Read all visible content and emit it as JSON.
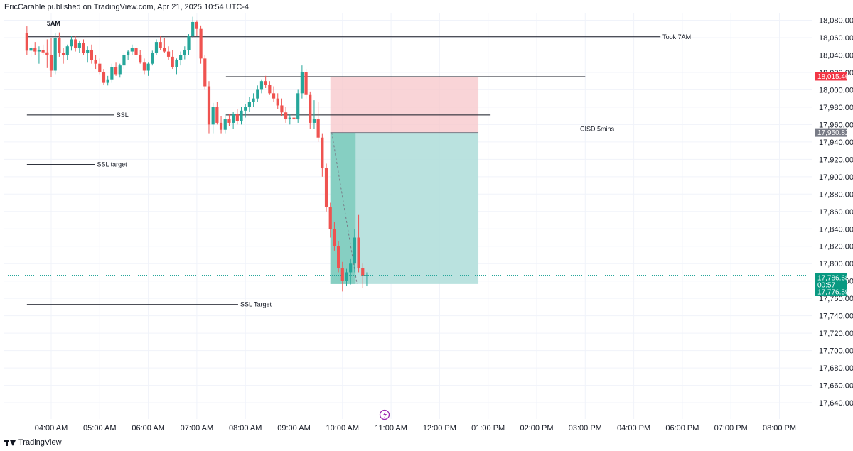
{
  "header": {
    "published_by": "EricCarable published on TradingView.com, Apr 21, 2025 10:54 UTC-4"
  },
  "footer": {
    "brand": "TradingView"
  },
  "colors": {
    "up": "#26a69a",
    "down": "#ef5350",
    "stop_zone": "#f7c5ca",
    "target_zone": "#b2dfdb",
    "target_zone_dark": "#7ccbbd",
    "price_tag_red": "#f23645",
    "price_tag_gray": "#787b86",
    "price_tag_green": "#089981"
  },
  "chart_data": {
    "type": "candlestick",
    "ylim": [
      17630,
      18090
    ],
    "y_ticks": [
      "18,080.00",
      "18,060.00",
      "18,040.00",
      "18,020.00",
      "18,000.00",
      "17,980.00",
      "17,960.00",
      "17,940.00",
      "17,920.00",
      "17,900.00",
      "17,880.00",
      "17,860.00",
      "17,840.00",
      "17,820.00",
      "17,800.00",
      "17,780.00",
      "17,760.00",
      "17,740.00",
      "17,720.00",
      "17,700.00",
      "17,680.00",
      "17,660.00",
      "17,640.00"
    ],
    "y_tick_values": [
      18080,
      18060,
      18040,
      18020,
      18000,
      17980,
      17960,
      17940,
      17920,
      17900,
      17880,
      17860,
      17840,
      17820,
      17800,
      17780,
      17760,
      17740,
      17720,
      17700,
      17680,
      17660,
      17640
    ],
    "x_ticks": [
      "04:00 AM",
      "05:00 AM",
      "06:00 AM",
      "07:00 AM",
      "08:00 AM",
      "09:00 AM",
      "10:00 AM",
      "11:00 AM",
      "12:00 PM",
      "01:00 PM",
      "02:00 PM",
      "03:00 PM",
      "04:00 PM",
      "06:00 PM",
      "07:00 PM",
      "08:00 PM"
    ],
    "x_tick_hours": [
      4,
      5,
      6,
      7,
      8,
      9,
      10,
      11,
      12,
      13,
      14,
      15,
      16,
      17,
      18,
      19
    ],
    "x_start_hour": 3.5,
    "x_end_hour": 19.8,
    "candles": [
      {
        "t": "03:30",
        "o": 18065,
        "h": 18073,
        "l": 18040,
        "c": 18045
      },
      {
        "t": "03:35",
        "o": 18045,
        "h": 18052,
        "l": 18038,
        "c": 18048
      },
      {
        "t": "03:40",
        "o": 18048,
        "h": 18055,
        "l": 18040,
        "c": 18044
      },
      {
        "t": "03:45",
        "o": 18044,
        "h": 18050,
        "l": 18030,
        "c": 18046
      },
      {
        "t": "03:50",
        "o": 18046,
        "h": 18052,
        "l": 18040,
        "c": 18043
      },
      {
        "t": "03:55",
        "o": 18043,
        "h": 18058,
        "l": 18025,
        "c": 18040
      },
      {
        "t": "04:00",
        "o": 18040,
        "h": 18060,
        "l": 18015,
        "c": 18022
      },
      {
        "t": "04:05",
        "o": 18022,
        "h": 18065,
        "l": 18018,
        "c": 18060
      },
      {
        "t": "04:10",
        "o": 18060,
        "h": 18066,
        "l": 18038,
        "c": 18042
      },
      {
        "t": "04:15",
        "o": 18042,
        "h": 18048,
        "l": 18030,
        "c": 18040
      },
      {
        "t": "04:20",
        "o": 18040,
        "h": 18052,
        "l": 18034,
        "c": 18050
      },
      {
        "t": "04:25",
        "o": 18050,
        "h": 18062,
        "l": 18045,
        "c": 18058
      },
      {
        "t": "04:30",
        "o": 18058,
        "h": 18062,
        "l": 18044,
        "c": 18048
      },
      {
        "t": "04:35",
        "o": 18048,
        "h": 18056,
        "l": 18042,
        "c": 18054
      },
      {
        "t": "04:40",
        "o": 18054,
        "h": 18058,
        "l": 18040,
        "c": 18042
      },
      {
        "t": "04:45",
        "o": 18042,
        "h": 18050,
        "l": 18032,
        "c": 18046
      },
      {
        "t": "04:50",
        "o": 18046,
        "h": 18052,
        "l": 18030,
        "c": 18034
      },
      {
        "t": "04:55",
        "o": 18034,
        "h": 18040,
        "l": 18024,
        "c": 18030
      },
      {
        "t": "05:00",
        "o": 18030,
        "h": 18036,
        "l": 18018,
        "c": 18020
      },
      {
        "t": "05:05",
        "o": 18020,
        "h": 18024,
        "l": 18006,
        "c": 18008
      },
      {
        "t": "05:10",
        "o": 18008,
        "h": 18016,
        "l": 18005,
        "c": 18012
      },
      {
        "t": "05:15",
        "o": 18012,
        "h": 18030,
        "l": 18008,
        "c": 18026
      },
      {
        "t": "05:20",
        "o": 18026,
        "h": 18032,
        "l": 18016,
        "c": 18018
      },
      {
        "t": "05:25",
        "o": 18018,
        "h": 18030,
        "l": 18014,
        "c": 18028
      },
      {
        "t": "05:30",
        "o": 18028,
        "h": 18042,
        "l": 18024,
        "c": 18040
      },
      {
        "t": "05:35",
        "o": 18040,
        "h": 18046,
        "l": 18034,
        "c": 18044
      },
      {
        "t": "05:40",
        "o": 18044,
        "h": 18052,
        "l": 18040,
        "c": 18048
      },
      {
        "t": "05:45",
        "o": 18048,
        "h": 18050,
        "l": 18036,
        "c": 18040
      },
      {
        "t": "05:50",
        "o": 18040,
        "h": 18046,
        "l": 18030,
        "c": 18032
      },
      {
        "t": "05:55",
        "o": 18032,
        "h": 18036,
        "l": 18018,
        "c": 18022
      },
      {
        "t": "06:00",
        "o": 18022,
        "h": 18032,
        "l": 18016,
        "c": 18030
      },
      {
        "t": "06:05",
        "o": 18030,
        "h": 18045,
        "l": 18028,
        "c": 18042
      },
      {
        "t": "06:10",
        "o": 18042,
        "h": 18058,
        "l": 18040,
        "c": 18055
      },
      {
        "t": "06:15",
        "o": 18055,
        "h": 18062,
        "l": 18046,
        "c": 18048
      },
      {
        "t": "06:20",
        "o": 18048,
        "h": 18060,
        "l": 18042,
        "c": 18044
      },
      {
        "t": "06:25",
        "o": 18044,
        "h": 18050,
        "l": 18034,
        "c": 18038
      },
      {
        "t": "06:30",
        "o": 18038,
        "h": 18046,
        "l": 18024,
        "c": 18026
      },
      {
        "t": "06:35",
        "o": 18026,
        "h": 18036,
        "l": 18018,
        "c": 18034
      },
      {
        "t": "06:40",
        "o": 18034,
        "h": 18044,
        "l": 18028,
        "c": 18040
      },
      {
        "t": "06:45",
        "o": 18040,
        "h": 18050,
        "l": 18035,
        "c": 18046
      },
      {
        "t": "06:50",
        "o": 18046,
        "h": 18064,
        "l": 18040,
        "c": 18062
      },
      {
        "t": "06:55",
        "o": 18062,
        "h": 18084,
        "l": 18060,
        "c": 18078
      },
      {
        "t": "07:00",
        "o": 18078,
        "h": 18080,
        "l": 18062,
        "c": 18070
      },
      {
        "t": "07:05",
        "o": 18070,
        "h": 18074,
        "l": 18030,
        "c": 18036
      },
      {
        "t": "07:10",
        "o": 18036,
        "h": 18040,
        "l": 18000,
        "c": 18004
      },
      {
        "t": "07:15",
        "o": 18004,
        "h": 18010,
        "l": 17950,
        "c": 17960
      },
      {
        "t": "07:20",
        "o": 17960,
        "h": 17985,
        "l": 17950,
        "c": 17980
      },
      {
        "t": "07:25",
        "o": 17980,
        "h": 17986,
        "l": 17960,
        "c": 17962
      },
      {
        "t": "07:30",
        "o": 17962,
        "h": 17970,
        "l": 17950,
        "c": 17954
      },
      {
        "t": "07:35",
        "o": 17954,
        "h": 17972,
        "l": 17950,
        "c": 17966
      },
      {
        "t": "07:40",
        "o": 17966,
        "h": 17972,
        "l": 17958,
        "c": 17962
      },
      {
        "t": "07:45",
        "o": 17962,
        "h": 17975,
        "l": 17955,
        "c": 17972
      },
      {
        "t": "07:50",
        "o": 17972,
        "h": 17978,
        "l": 17960,
        "c": 17964
      },
      {
        "t": "07:55",
        "o": 17964,
        "h": 17980,
        "l": 17960,
        "c": 17976
      },
      {
        "t": "08:00",
        "o": 17976,
        "h": 17984,
        "l": 17968,
        "c": 17980
      },
      {
        "t": "08:05",
        "o": 17980,
        "h": 17992,
        "l": 17975,
        "c": 17986
      },
      {
        "t": "08:10",
        "o": 17986,
        "h": 17996,
        "l": 17980,
        "c": 17990
      },
      {
        "t": "08:15",
        "o": 17990,
        "h": 18005,
        "l": 17986,
        "c": 18000
      },
      {
        "t": "08:20",
        "o": 18000,
        "h": 18012,
        "l": 17996,
        "c": 18010
      },
      {
        "t": "08:25",
        "o": 18010,
        "h": 18016,
        "l": 18002,
        "c": 18006
      },
      {
        "t": "08:30",
        "o": 18006,
        "h": 18010,
        "l": 17994,
        "c": 17996
      },
      {
        "t": "08:35",
        "o": 17996,
        "h": 18004,
        "l": 17986,
        "c": 17990
      },
      {
        "t": "08:40",
        "o": 17990,
        "h": 17996,
        "l": 17978,
        "c": 17982
      },
      {
        "t": "08:45",
        "o": 17982,
        "h": 17990,
        "l": 17970,
        "c": 17974
      },
      {
        "t": "08:50",
        "o": 17974,
        "h": 17980,
        "l": 17962,
        "c": 17966
      },
      {
        "t": "08:55",
        "o": 17966,
        "h": 17972,
        "l": 17960,
        "c": 17968
      },
      {
        "t": "09:00",
        "o": 17968,
        "h": 17974,
        "l": 17962,
        "c": 17966
      },
      {
        "t": "09:05",
        "o": 17966,
        "h": 18000,
        "l": 17962,
        "c": 17996
      },
      {
        "t": "09:10",
        "o": 17996,
        "h": 18028,
        "l": 17990,
        "c": 18020
      },
      {
        "t": "09:15",
        "o": 18020,
        "h": 18024,
        "l": 17990,
        "c": 17994
      },
      {
        "t": "09:20",
        "o": 17994,
        "h": 17998,
        "l": 17955,
        "c": 17962
      },
      {
        "t": "09:25",
        "o": 17962,
        "h": 17988,
        "l": 17955,
        "c": 17966
      },
      {
        "t": "09:30",
        "o": 17966,
        "h": 17986,
        "l": 17940,
        "c": 17945
      },
      {
        "t": "09:35",
        "o": 17945,
        "h": 17950,
        "l": 17900,
        "c": 17910
      },
      {
        "t": "09:40",
        "o": 17910,
        "h": 17915,
        "l": 17860,
        "c": 17865
      },
      {
        "t": "09:45",
        "o": 17865,
        "h": 17870,
        "l": 17830,
        "c": 17840
      },
      {
        "t": "09:50",
        "o": 17840,
        "h": 17848,
        "l": 17815,
        "c": 17820
      },
      {
        "t": "09:55",
        "o": 17820,
        "h": 17826,
        "l": 17790,
        "c": 17795
      },
      {
        "t": "10:00",
        "o": 17795,
        "h": 17802,
        "l": 17768,
        "c": 17780
      },
      {
        "t": "10:05",
        "o": 17780,
        "h": 17794,
        "l": 17774,
        "c": 17790
      },
      {
        "t": "10:10",
        "o": 17790,
        "h": 17806,
        "l": 17776,
        "c": 17800
      },
      {
        "t": "10:15",
        "o": 17800,
        "h": 17840,
        "l": 17790,
        "c": 17830
      },
      {
        "t": "10:20",
        "o": 17830,
        "h": 17856,
        "l": 17790,
        "c": 17795
      },
      {
        "t": "10:25",
        "o": 17795,
        "h": 17800,
        "l": 17772,
        "c": 17786
      },
      {
        "t": "10:30",
        "o": 17786,
        "h": 17790,
        "l": 17774,
        "c": 17787
      }
    ],
    "horizontal_levels": [
      {
        "label": "Took 7AM",
        "price": 18061,
        "x_start_hour": 3.5,
        "x_end_hour": 16.55
      },
      {
        "label": "",
        "price": 18015,
        "x_start_hour": 7.6,
        "x_end_hour": 15.0
      },
      {
        "label": "SSL",
        "price": 17971,
        "x_start_hour": 3.5,
        "x_end_hour": 5.3
      },
      {
        "label": "",
        "price": 17971,
        "x_start_hour": 7.6,
        "x_end_hour": 13.05
      },
      {
        "label": "CISD 5mins",
        "price": 17955,
        "x_start_hour": 7.6,
        "x_end_hour": 14.85
      },
      {
        "label": "SSL target",
        "price": 17914,
        "x_start_hour": 3.5,
        "x_end_hour": 4.9
      },
      {
        "label": "SSL Target",
        "price": 17753,
        "x_start_hour": 3.5,
        "x_end_hour": 7.85
      }
    ],
    "session_marker": {
      "label": "5AM",
      "hour": 4.05
    },
    "position": {
      "type": "short",
      "entry": 17950.82,
      "stop": 18015.46,
      "target": 17776.59,
      "x_start_hour": 9.75,
      "x_end_hour": 12.8,
      "filled_until_hour": 10.27
    },
    "price_tags": [
      {
        "label": "18,015.46",
        "price": 18015.46,
        "color": "#f23645"
      },
      {
        "label": "17,950.82",
        "price": 17950.82,
        "color": "#787b86"
      },
      {
        "label": "17,786.68",
        "price": 17786.68,
        "color": "#089981"
      },
      {
        "label": "00:57",
        "price": 17779,
        "color": "#089981"
      },
      {
        "label": "17,776.59",
        "price": 17776.59,
        "color": "#089981"
      }
    ],
    "last_price": 17786.68
  }
}
